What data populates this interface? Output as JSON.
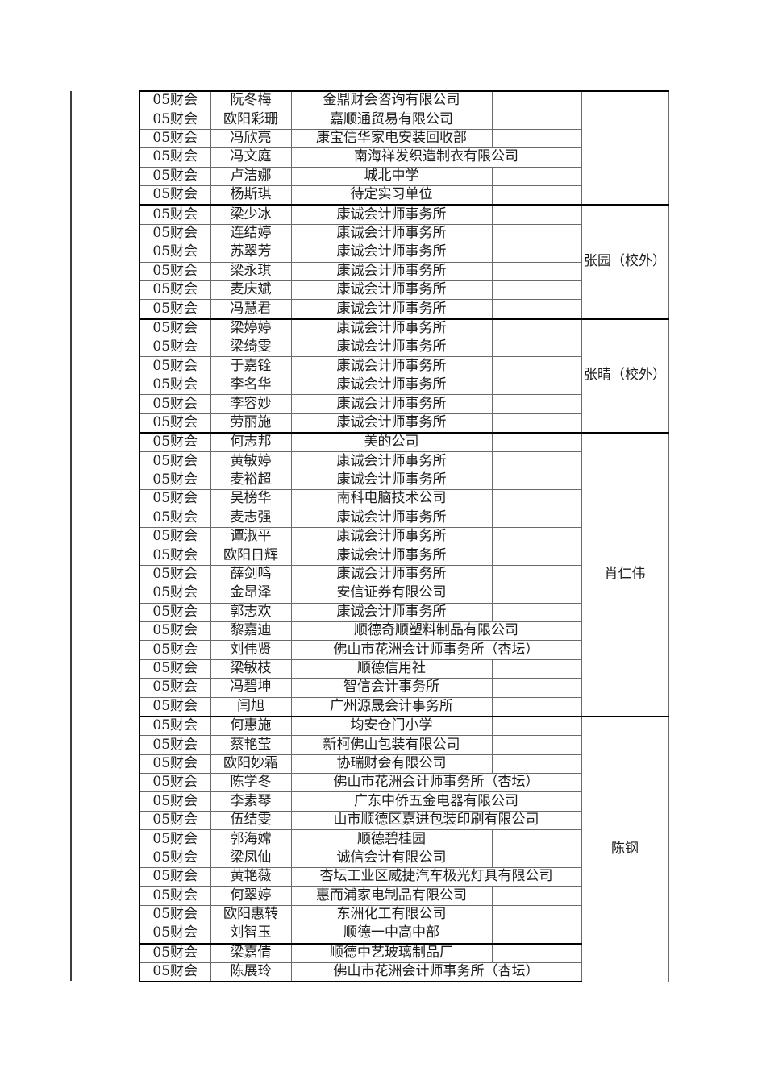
{
  "page": {
    "background": "#ffffff",
    "text_color": "#1c1c1c",
    "thick_border_color": "#000000",
    "thin_border_color": "#6a6a6a"
  },
  "table": {
    "class_label_all_rows": "05财会",
    "groups": [
      {
        "supervisor": "",
        "rows": [
          {
            "class": "05财会",
            "name": "阮冬梅",
            "company": "金鼎财会咨询有限公司"
          },
          {
            "class": "05财会",
            "name": "欧阳彩珊",
            "company": "嘉顺通贸易有限公司"
          },
          {
            "class": "05财会",
            "name": "冯欣亮",
            "company": "康宝信华家电安装回收部"
          },
          {
            "class": "05财会",
            "name": "冯文庭",
            "company": "南海祥发织造制衣有限公司"
          },
          {
            "class": "05财会",
            "name": "卢洁娜",
            "company": "城北中学"
          },
          {
            "class": "05财会",
            "name": "杨斯琪",
            "company": "待定实习单位"
          }
        ]
      },
      {
        "supervisor": "张园（校外）",
        "rows": [
          {
            "class": "05财会",
            "name": "梁少冰",
            "company": "康诚会计师事务所"
          },
          {
            "class": "05财会",
            "name": "连结婷",
            "company": "康诚会计师事务所"
          },
          {
            "class": "05财会",
            "name": "苏翠芳",
            "company": "康诚会计师事务所"
          },
          {
            "class": "05财会",
            "name": "梁永琪",
            "company": "康诚会计师事务所"
          },
          {
            "class": "05财会",
            "name": "麦庆斌",
            "company": "康诚会计师事务所"
          },
          {
            "class": "05财会",
            "name": "冯慧君",
            "company": "康诚会计师事务所"
          }
        ]
      },
      {
        "supervisor": "张晴（校外）",
        "rows": [
          {
            "class": "05财会",
            "name": "梁婷婷",
            "company": "康诚会计师事务所"
          },
          {
            "class": "05财会",
            "name": "梁绮雯",
            "company": "康诚会计师事务所"
          },
          {
            "class": "05财会",
            "name": "于嘉铨",
            "company": "康诚会计师事务所"
          },
          {
            "class": "05财会",
            "name": "李名华",
            "company": "康诚会计师事务所"
          },
          {
            "class": "05财会",
            "name": "李容妙",
            "company": "康诚会计师事务所"
          },
          {
            "class": "05财会",
            "name": "劳丽施",
            "company": "康诚会计师事务所"
          }
        ]
      },
      {
        "supervisor": "肖仁伟",
        "rows": [
          {
            "class": "05财会",
            "name": "何志邦",
            "company": "美的公司"
          },
          {
            "class": "05财会",
            "name": "黄敏婷",
            "company": "康诚会计师事务所"
          },
          {
            "class": "05财会",
            "name": "麦裕超",
            "company": "康诚会计师事务所"
          },
          {
            "class": "05财会",
            "name": "吴榜华",
            "company": "南科电脑技术公司"
          },
          {
            "class": "05财会",
            "name": "麦志强",
            "company": "康诚会计师事务所"
          },
          {
            "class": "05财会",
            "name": "谭淑平",
            "company": "康诚会计师事务所"
          },
          {
            "class": "05财会",
            "name": "欧阳日辉",
            "company": "康诚会计师事务所"
          },
          {
            "class": "05财会",
            "name": "薛剑鸣",
            "company": "康诚会计师事务所"
          },
          {
            "class": "05财会",
            "name": "金昂泽",
            "company": "安信证券有限公司"
          },
          {
            "class": "05财会",
            "name": "郭志欢",
            "company": "康诚会计师事务所"
          },
          {
            "class": "05财会",
            "name": "黎嘉迪",
            "company": "顺德奇顺塑料制品有限公司"
          },
          {
            "class": "05财会",
            "name": "刘伟贤",
            "company": "佛山市花洲会计师事务所（杏坛）"
          },
          {
            "class": "05财会",
            "name": "梁敏枝",
            "company": "顺德信用社"
          },
          {
            "class": "05财会",
            "name": "冯碧坤",
            "company": "智信会计事务所"
          },
          {
            "class": "05财会",
            "name": "闫旭",
            "company": "广州源晟会计事务所"
          }
        ]
      },
      {
        "supervisor": "陈钢",
        "rows": [
          {
            "class": "05财会",
            "name": "何惠施",
            "company": "均安仓门小学"
          },
          {
            "class": "05财会",
            "name": "蔡艳莹",
            "company": "新柯佛山包装有限公司"
          },
          {
            "class": "05财会",
            "name": "欧阳妙霜",
            "company": "协瑞财会有限公司"
          },
          {
            "class": "05财会",
            "name": "陈学冬",
            "company": "佛山市花洲会计师事务所（杏坛）"
          },
          {
            "class": "05财会",
            "name": "李素琴",
            "company": "广东中侨五金电器有限公司"
          },
          {
            "class": "05财会",
            "name": "伍结雯",
            "company": "山市顺德区嘉进包装印刷有限公司"
          },
          {
            "class": "05财会",
            "name": "郭海嫦",
            "company": "顺德碧桂园"
          },
          {
            "class": "05财会",
            "name": "梁凤仙",
            "company": "诚信会计有限公司"
          },
          {
            "class": "05财会",
            "name": "黄艳薇",
            "company": "杏坛工业区威捷汽车极光灯具有限公司"
          },
          {
            "class": "05财会",
            "name": "何翠婷",
            "company": "惠而浦家电制品有限公司"
          },
          {
            "class": "05财会",
            "name": "欧阳惠转",
            "company": "东洲化工有限公司"
          },
          {
            "class": "05财会",
            "name": "刘智玉",
            "company": "顺德一中高中部",
            "thick_border_below": true
          },
          {
            "class": "05财会",
            "name": "梁嘉倩",
            "company": "顺德中艺玻璃制品厂"
          },
          {
            "class": "05财会",
            "name": "陈展玲",
            "company": "佛山市花洲会计师事务所（杏坛）"
          }
        ]
      }
    ]
  }
}
